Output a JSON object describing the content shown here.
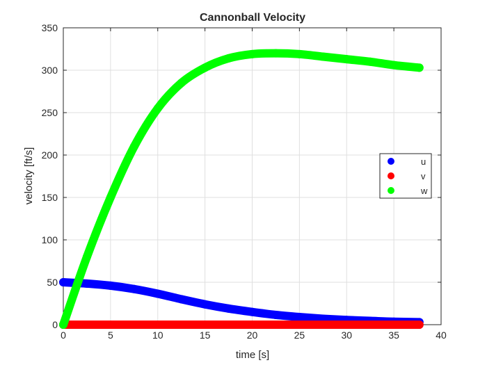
{
  "chart_data": {
    "type": "scatter",
    "title": "Cannonball Velocity",
    "xlabel": "time [s]",
    "ylabel": "velocity [ft/s]",
    "xlim": [
      0,
      40
    ],
    "ylim": [
      0,
      350
    ],
    "xticks": [
      0,
      5,
      10,
      15,
      20,
      25,
      30,
      35,
      40
    ],
    "yticks": [
      0,
      50,
      100,
      150,
      200,
      250,
      300,
      350
    ],
    "grid": true,
    "legend_position": "right",
    "series": [
      {
        "name": "u",
        "color": "#0000ff",
        "x": [
          0,
          2.5,
          5,
          7.5,
          10,
          12.5,
          15,
          17.5,
          20,
          22.5,
          25,
          27.5,
          30,
          32.5,
          35,
          37.7
        ],
        "y": [
          50,
          48.5,
          46,
          42,
          36.5,
          30,
          24,
          19,
          15,
          11.5,
          9,
          7,
          5.5,
          4.5,
          3.5,
          3
        ]
      },
      {
        "name": "v",
        "color": "#ff0000",
        "x": [
          0,
          5,
          10,
          15,
          20,
          25,
          30,
          35,
          37.7
        ],
        "y": [
          0,
          0,
          0,
          0,
          0,
          0,
          0,
          0,
          0
        ]
      },
      {
        "name": "w",
        "color": "#00ff00",
        "x": [
          0,
          2.5,
          5,
          7.5,
          10,
          12.5,
          15,
          17.5,
          20,
          22.5,
          25,
          27.5,
          30,
          32.5,
          35,
          37.7
        ],
        "y": [
          0,
          80,
          150,
          210,
          255,
          285,
          303,
          314,
          319,
          320,
          319,
          316,
          313,
          310,
          306,
          303
        ]
      }
    ]
  }
}
